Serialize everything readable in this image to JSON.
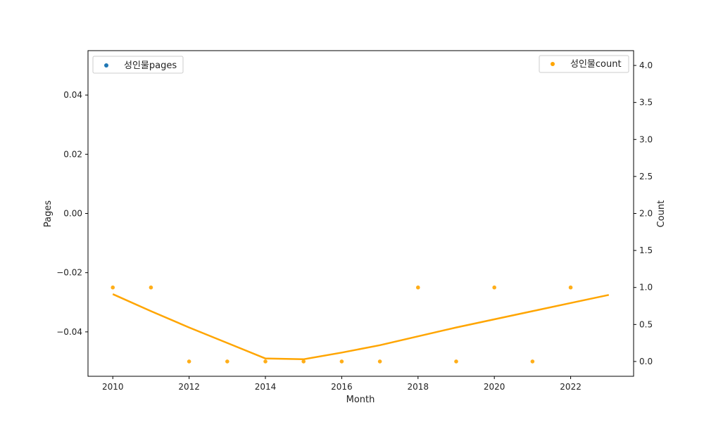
{
  "chart_data": {
    "type": "scatter",
    "xlabel": "Month",
    "ylabel_left": "Pages",
    "ylabel_right": "Count",
    "x_ticks": [
      "2010",
      "2012",
      "2014",
      "2016",
      "2018",
      "2020",
      "2022"
    ],
    "xlim": [
      2009.35,
      2023.65
    ],
    "y_left_ticks": [
      "0.04",
      "0.02",
      "0.00",
      "−0.02",
      "−0.04"
    ],
    "ylim_left": [
      -0.055,
      0.055
    ],
    "y_right_ticks": [
      "0.0",
      "0.5",
      "1.0",
      "1.5",
      "2.0",
      "2.5",
      "3.0",
      "3.5",
      "4.0"
    ],
    "ylim_right": [
      -0.2,
      4.2
    ],
    "grid": false,
    "series": [
      {
        "name": "성인물pages",
        "axis": "left",
        "kind": "scatter",
        "color": "#1f77b4",
        "x": [],
        "y": []
      },
      {
        "name": "성인물count",
        "axis": "right",
        "kind": "scatter",
        "color": "#ffa500",
        "x": [
          2010,
          2011,
          2012,
          2013,
          2014,
          2015,
          2016,
          2017,
          2018,
          2019,
          2020,
          2021,
          2022
        ],
        "y": [
          1,
          1,
          0,
          0,
          0,
          0,
          0,
          0,
          1,
          0,
          1,
          0,
          1
        ]
      },
      {
        "kind": "line",
        "axis": "right",
        "color": "#ffa500",
        "x": [
          2010,
          2011,
          2012,
          2013,
          2014,
          2015,
          2016,
          2017,
          2018,
          2019,
          2020,
          2021,
          2022,
          2023
        ],
        "y": [
          0.91,
          0.68,
          0.46,
          0.25,
          0.04,
          0.03,
          0.12,
          0.22,
          0.34,
          0.46,
          0.57,
          0.68,
          0.79,
          0.9
        ]
      }
    ],
    "legends": [
      {
        "series": "성인물pages",
        "placement": "top-left"
      },
      {
        "series": "성인물count",
        "placement": "top-right"
      }
    ]
  }
}
